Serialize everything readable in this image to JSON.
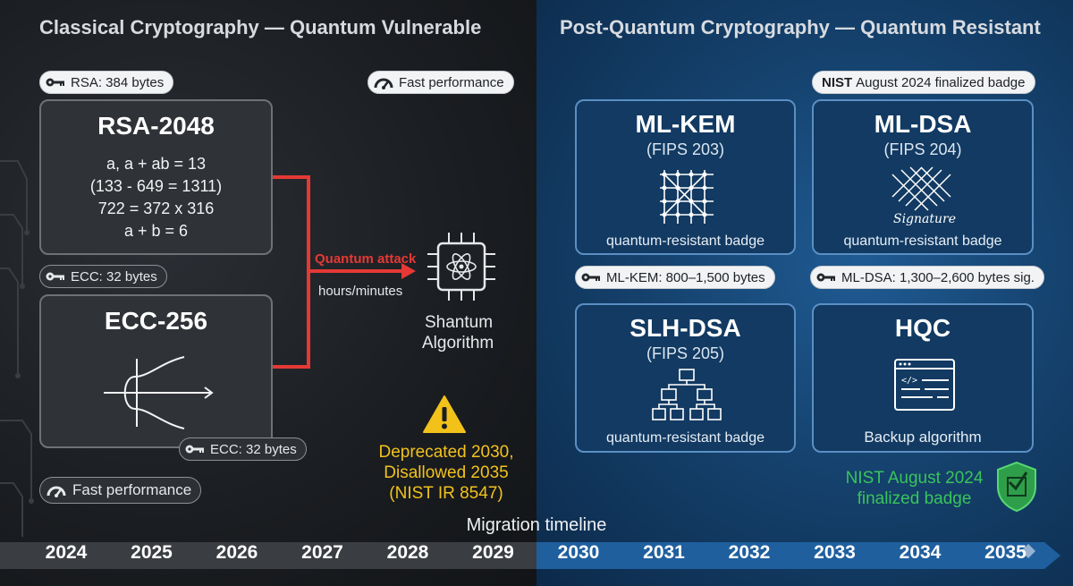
{
  "left": {
    "heading": "Classical Cryptography — Quantum Vulnerable",
    "rsa_pill": "RSA: 384 bytes",
    "fast_pill_top": "Fast performance",
    "rsa_card": {
      "title": "RSA-2048",
      "lines": [
        "a, a + ab = 13",
        "(133 - 649 = 1311)",
        "722 = 372 x 316",
        "a + b = 6"
      ]
    },
    "ecc_pill_top": "ECC: 32 bytes",
    "ecc_card": {
      "title": "ECC-256"
    },
    "ecc_pill_bottom": "ECC: 32 bytes",
    "fast_pill_bottom": "Fast performance",
    "attack_label": "Quantum attack",
    "attack_time": "hours/minutes",
    "algorithm_label": [
      "Shantum",
      "Algorithm"
    ],
    "warning_lines": [
      "Deprecated 2030,",
      "Disallowed 2035",
      "(NIST IR 8547)"
    ]
  },
  "right": {
    "heading": "Post-Quantum Cryptography — Quantum Resistant",
    "nist_pill": {
      "bold": "NIST",
      "rest": "August 2024 finalized badge"
    },
    "cards": [
      {
        "title": "ML-KEM",
        "sub": "(FIPS 203)",
        "badge": "quantum-resistant badge",
        "icon": "lattice-icon"
      },
      {
        "title": "ML-DSA",
        "sub": "(FIPS 204)",
        "badge": "quantum-resistant badge",
        "icon": "signature-lattice-icon",
        "icon_text": "Signature"
      },
      {
        "title": "SLH-DSA",
        "sub": "(FIPS 205)",
        "badge": "quantum-resistant badge",
        "icon": "hash-tree-icon"
      },
      {
        "title": "HQC",
        "badge": "Backup algorithm",
        "icon": "code-window-icon"
      }
    ],
    "mlkem_pill": "ML-KEM: 800–1,500 bytes",
    "mldsa_pill": "ML-DSA: 1,300–2,600 bytes sig.",
    "nist_final": [
      "NIST August 2024",
      "finalized badge"
    ]
  },
  "timeline": {
    "label": "Migration timeline",
    "years": [
      "2024",
      "2025",
      "2026",
      "2027",
      "2028",
      "2029",
      "2030",
      "2031",
      "2032",
      "2033",
      "2034",
      "2035"
    ]
  },
  "colors": {
    "attack_red": "#e53935",
    "warning_yellow": "#f2c21b",
    "nist_green": "#39c45a",
    "timeline_gray": "#3a3d41",
    "timeline_blue": "#1f5f9e"
  }
}
